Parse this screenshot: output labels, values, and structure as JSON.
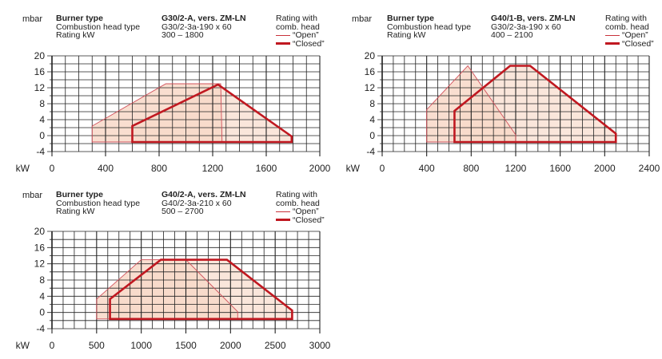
{
  "header_labels": {
    "burner_type": "Burner type",
    "head_type": "Combustion head type",
    "rating": "Rating kW",
    "rating_with": "Rating with",
    "comb_head": "comb. head",
    "open": "“Open”",
    "closed": "“Closed”",
    "y_unit": "mbar",
    "x_unit": "kW"
  },
  "colors": {
    "fill": "#f8d8c8",
    "open_line": "#d0505a",
    "closed_line": "#c01820",
    "grid": "#222222"
  },
  "chart_data": [
    {
      "type": "area",
      "burner": "G30/2-A, vers. ZM-LN",
      "head": "G30/2-3a-190 x 60",
      "rating_range": "300 – 1800",
      "ylabel": "mbar",
      "xlabel": "kW",
      "xlim": [
        0,
        2000
      ],
      "ylim": [
        -4,
        20
      ],
      "x_ticks": [
        "0",
        "400",
        "800",
        "1200",
        "1600",
        "2000"
      ],
      "y_ticks": [
        "20",
        "16",
        "12",
        "8",
        "4",
        "0",
        "-4"
      ],
      "series": [
        {
          "name": "“Open”",
          "points": [
            [
              300,
              -1.6
            ],
            [
              300,
              2.4
            ],
            [
              850,
              13
            ],
            [
              1260,
              13
            ],
            [
              1270,
              -1.6
            ]
          ]
        },
        {
          "name": "“Closed”",
          "points": [
            [
              600,
              -1.6
            ],
            [
              600,
              2.4
            ],
            [
              1240,
              12.8
            ],
            [
              1790,
              -0.2
            ],
            [
              1790,
              -1.6
            ]
          ]
        }
      ]
    },
    {
      "type": "area",
      "burner": "G40/1-B, vers. ZM-LN",
      "head": "G30/2-3a-190 x 60",
      "rating_range": "400 – 2100",
      "ylabel": "mbar",
      "xlabel": "kW",
      "xlim": [
        0,
        2400
      ],
      "ylim": [
        -4,
        20
      ],
      "x_ticks": [
        "0",
        "400",
        "800",
        "1200",
        "1600",
        "2000",
        "2400"
      ],
      "y_ticks": [
        "20",
        "16",
        "12",
        "8",
        "4",
        "0",
        "-4"
      ],
      "series": [
        {
          "name": "“Open”",
          "points": [
            [
              400,
              -1.6
            ],
            [
              400,
              6.5
            ],
            [
              770,
              17.5
            ],
            [
              1200,
              0.2
            ],
            [
              1200,
              -1.6
            ]
          ]
        },
        {
          "name": "“Closed”",
          "points": [
            [
              650,
              -1.6
            ],
            [
              650,
              6.2
            ],
            [
              1150,
              17.5
            ],
            [
              1330,
              17.5
            ],
            [
              2100,
              0.5
            ],
            [
              2100,
              -1.6
            ]
          ]
        }
      ]
    },
    {
      "type": "area",
      "burner": "G40/2-A, vers. ZM-LN",
      "head": "G40/2-3a-210 x 60",
      "rating_range": "500 – 2700",
      "ylabel": "mbar",
      "xlabel": "kW",
      "xlim": [
        0,
        3000
      ],
      "ylim": [
        -4,
        20
      ],
      "x_ticks": [
        "0",
        "500",
        "1000",
        "1500",
        "2000",
        "2500",
        "3000"
      ],
      "y_ticks": [
        "20",
        "16",
        "12",
        "8",
        "4",
        "0",
        "-4"
      ],
      "series": [
        {
          "name": "“Open”",
          "points": [
            [
              500,
              -1.6
            ],
            [
              500,
              3.3
            ],
            [
              1000,
              13
            ],
            [
              1500,
              13
            ],
            [
              2080,
              0.2
            ],
            [
              2080,
              -1.6
            ]
          ]
        },
        {
          "name": "“Closed”",
          "points": [
            [
              650,
              -1.6
            ],
            [
              650,
              3.3
            ],
            [
              1220,
              13
            ],
            [
              1960,
              13
            ],
            [
              2690,
              0.5
            ],
            [
              2690,
              -1.6
            ]
          ]
        }
      ]
    }
  ]
}
